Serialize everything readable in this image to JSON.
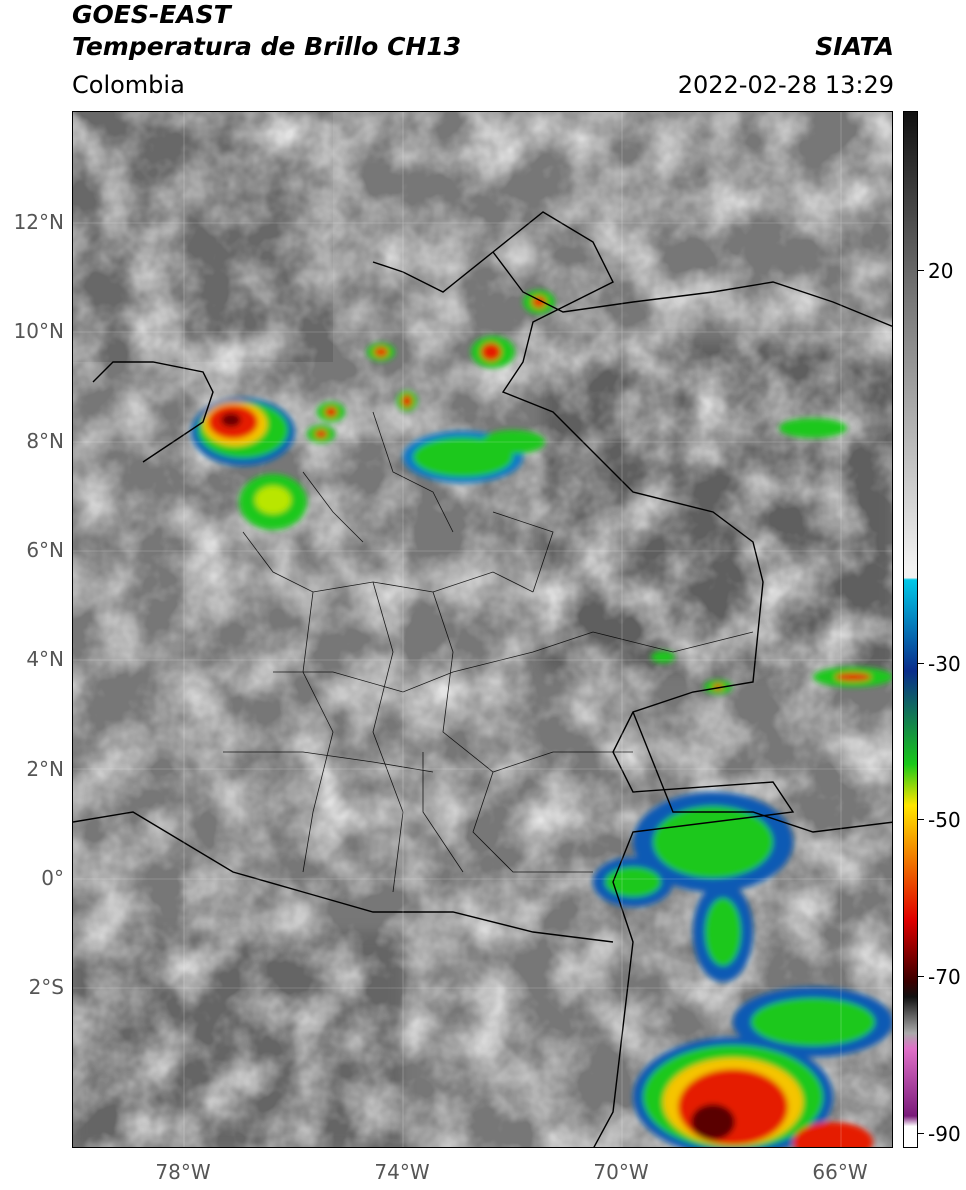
{
  "header": {
    "satellite": "GOES-EAST",
    "product": "Temperatura de Brillo CH13",
    "organization": "SIATA",
    "region": "Colombia",
    "datetime": "2022-02-28 13:29"
  },
  "map": {
    "lat_labels": [
      "12°N",
      "10°N",
      "8°N",
      "6°N",
      "4°N",
      "2°N",
      "0°",
      "2°S"
    ],
    "lon_labels": [
      "78°W",
      "74°W",
      "70°W",
      "66°W"
    ]
  },
  "colorbar": {
    "labels": [
      "20",
      "-30",
      "-50",
      "-70",
      "-90"
    ],
    "colors": {
      "dark": "#111111",
      "light": "#f2f2f2",
      "cyan": "#00c8e8",
      "blue": "#0a2d8c",
      "green": "#19c819",
      "yellow": "#ffe600",
      "red": "#e00000",
      "magenta": "#e070c8"
    }
  }
}
